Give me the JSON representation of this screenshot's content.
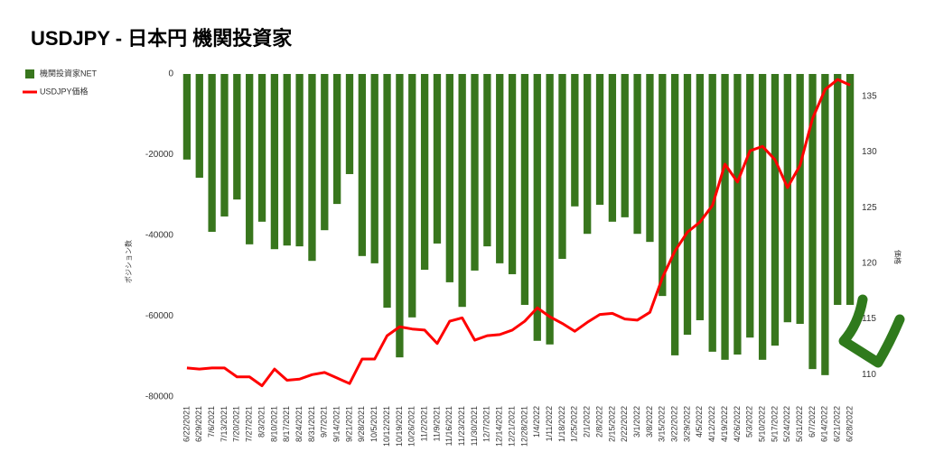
{
  "chart_data": {
    "type": "bar_line",
    "title": "USDJPY - 日本円 機関投資家",
    "y_label": "ポジション数",
    "y2_label": "価格",
    "categories": [
      "6/22/2021",
      "6/29/2021",
      "7/6/2021",
      "7/13/2021",
      "7/20/2021",
      "7/27/2021",
      "8/3/2021",
      "8/10/2021",
      "8/17/2021",
      "8/24/2021",
      "8/31/2021",
      "9/7/2021",
      "9/14/2021",
      "9/21/2021",
      "9/28/2021",
      "10/5/2021",
      "10/12/2021",
      "10/19/2021",
      "10/26/2021",
      "11/2/2021",
      "11/9/2021",
      "11/16/2021",
      "11/23/2021",
      "11/30/2021",
      "12/7/2021",
      "12/14/2021",
      "12/21/2021",
      "12/28/2021",
      "1/4/2022",
      "1/11/2022",
      "1/18/2022",
      "1/25/2022",
      "2/1/2022",
      "2/8/2022",
      "2/15/2022",
      "2/22/2022",
      "3/1/2022",
      "3/8/2022",
      "3/15/2022",
      "3/22/2022",
      "3/29/2022",
      "4/5/2022",
      "4/12/2022",
      "4/19/2022",
      "4/26/2022",
      "5/3/2022",
      "5/10/2022",
      "5/17/2022",
      "5/24/2022",
      "5/31/2022",
      "6/7/2022",
      "6/14/2022",
      "6/21/2022",
      "6/28/2022"
    ],
    "series": [
      {
        "name": "機関投資家NET",
        "color": "#38761d",
        "axis": "y",
        "values": [
          -21200,
          -25700,
          -39100,
          -35300,
          -31100,
          -42200,
          -36600,
          -43400,
          -42500,
          -42700,
          -46300,
          -38700,
          -32200,
          -24800,
          -45100,
          -46900,
          -57900,
          -70200,
          -60300,
          -48500,
          -42000,
          -51600,
          -57700,
          -48700,
          -42700,
          -46900,
          -49600,
          -57200,
          -66100,
          -67000,
          -45800,
          -32800,
          -39600,
          -32400,
          -36600,
          -35500,
          -39600,
          -41600,
          -55000,
          -69700,
          -64600,
          -61000,
          -68800,
          -70800,
          -69500,
          -65300,
          -70800,
          -67300,
          -61500,
          -61900,
          -73100,
          -74600,
          -57200,
          -57200
        ]
      },
      {
        "name": "USDJPY価格",
        "color": "#ff0000",
        "axis": "y2",
        "values": [
          110.6,
          110.5,
          110.6,
          110.6,
          109.8,
          109.8,
          109.0,
          110.5,
          109.5,
          109.6,
          110.0,
          110.2,
          109.7,
          109.2,
          111.4,
          111.4,
          113.5,
          114.3,
          114.1,
          114.0,
          112.8,
          114.8,
          115.1,
          113.1,
          113.5,
          113.6,
          114.0,
          114.8,
          116.0,
          115.2,
          114.6,
          113.9,
          114.7,
          115.4,
          115.5,
          115.0,
          114.9,
          115.6,
          118.7,
          121.1,
          122.8,
          123.7,
          125.2,
          128.9,
          127.3,
          130.1,
          130.5,
          129.3,
          126.8,
          128.8,
          133.0,
          135.6,
          136.5,
          136.0
        ]
      }
    ],
    "ylim": [
      0,
      -80000
    ],
    "yticks": [
      0,
      -20000,
      -40000,
      -60000,
      -80000
    ],
    "y2lim": [
      137,
      108
    ],
    "y2ticks": [
      110,
      115,
      120,
      125,
      130,
      135
    ],
    "legend": "top-left",
    "grid": false
  }
}
